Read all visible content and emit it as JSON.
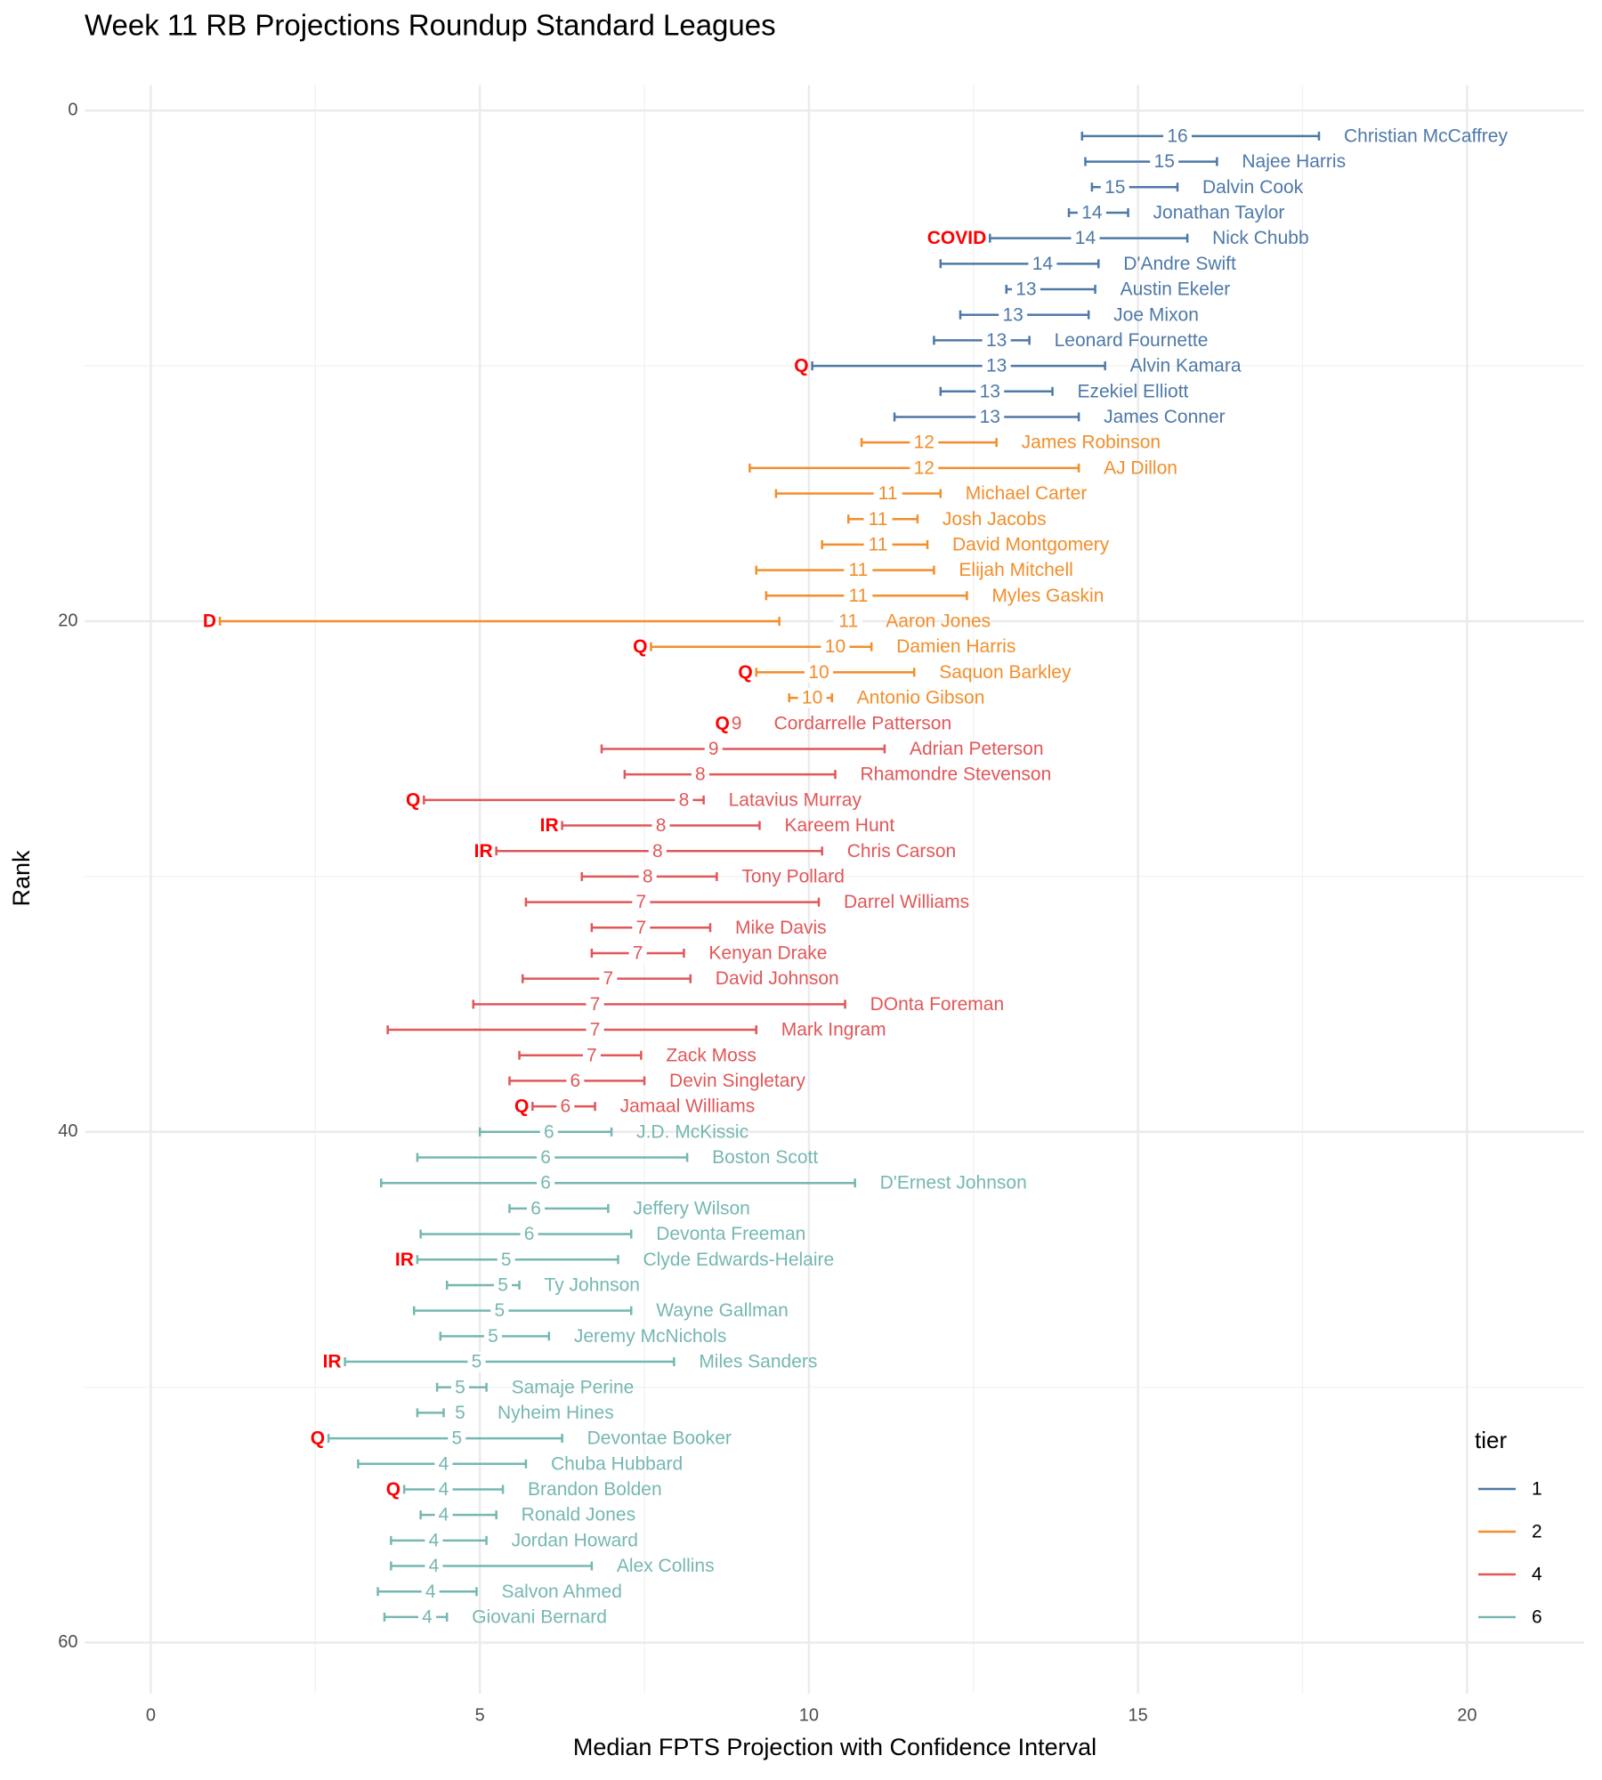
{
  "chart_data": {
    "type": "errorbar",
    "title": "Week 11 RB Projections Roundup Standard Leagues",
    "x_label": "Median FPTS Projection with Confidence Interval",
    "y_label": "Rank",
    "xlim": [
      -1,
      21.78
    ],
    "ylim": [
      -1,
      62
    ],
    "y_reversed": true,
    "xticks": [
      0,
      5,
      10,
      15,
      20
    ],
    "yticks": [
      0,
      20,
      40,
      60
    ],
    "x_minor_grid": [
      2.5,
      7.5,
      12.5,
      17.5
    ],
    "y_minor_grid": [
      10,
      30,
      50
    ],
    "grid": true,
    "legend_title": "tier",
    "legend_position": "bottom-right",
    "status_color": "#ff0000",
    "series": [
      {
        "name": "1",
        "color": "#4e79a7",
        "ranks": [
          1,
          2,
          3,
          4,
          5,
          6,
          7,
          8,
          9,
          10,
          11,
          12
        ],
        "labels": [
          "Christian McCaffrey",
          "Najee Harris",
          "Dalvin Cook",
          "Jonathan Taylor",
          "Nick Chubb",
          "D'Andre Swift",
          "Austin Ekeler",
          "Joe Mixon",
          "Leonard Fournette",
          "Alvin Kamara",
          "Ezekiel Elliott",
          "James Conner"
        ],
        "values": [
          15.6,
          15.4,
          14.65,
          14.3,
          14.2,
          13.55,
          13.3,
          13.1,
          12.85,
          12.85,
          12.75,
          12.75
        ],
        "value_labels": [
          "16",
          "15",
          "15",
          "14",
          "14",
          "14",
          "13",
          "13",
          "13",
          "13",
          "13",
          "13"
        ],
        "lower": [
          14.15,
          14.2,
          14.3,
          13.95,
          12.75,
          12.0,
          13.0,
          12.3,
          11.9,
          10.05,
          12.0,
          11.3
        ],
        "upper": [
          17.75,
          16.2,
          15.6,
          14.85,
          15.75,
          14.4,
          14.35,
          14.25,
          13.35,
          14.5,
          13.7,
          14.1
        ],
        "status": [
          null,
          null,
          null,
          null,
          "COVID",
          null,
          null,
          null,
          null,
          "Q",
          null,
          null
        ]
      },
      {
        "name": "2",
        "color": "#f28e2b",
        "ranks": [
          13,
          14,
          15,
          16,
          17,
          18,
          19,
          20,
          21,
          22,
          23
        ],
        "labels": [
          "James Robinson",
          "AJ Dillon",
          "Michael Carter",
          "Josh Jacobs",
          "David Montgomery",
          "Elijah Mitchell",
          "Myles Gaskin",
          "Aaron Jones",
          "Damien Harris",
          "Saquon Barkley",
          "Antonio Gibson"
        ],
        "values": [
          11.75,
          11.75,
          11.2,
          11.05,
          11.05,
          10.75,
          10.75,
          10.6,
          10.4,
          10.15,
          10.05
        ],
        "value_labels": [
          "12",
          "12",
          "11",
          "11",
          "11",
          "11",
          "11",
          "11",
          "10",
          "10",
          "10"
        ],
        "lower": [
          10.8,
          9.1,
          9.5,
          10.6,
          10.2,
          9.2,
          9.35,
          1.05,
          7.6,
          9.2,
          9.7
        ],
        "upper": [
          12.85,
          14.1,
          12.0,
          11.65,
          11.8,
          11.9,
          12.4,
          9.55,
          10.95,
          11.6,
          10.35
        ],
        "status": [
          null,
          null,
          null,
          null,
          null,
          null,
          null,
          "D",
          "Q",
          "Q",
          null
        ]
      },
      {
        "name": "4",
        "color": "#e15759",
        "ranks": [
          24,
          25,
          26,
          27,
          28,
          29,
          30,
          31,
          32,
          33,
          34,
          35,
          36,
          37,
          38,
          39
        ],
        "labels": [
          "Cordarrelle Patterson",
          "Adrian Peterson",
          "Rhamondre Stevenson",
          "Latavius Murray",
          "Kareem Hunt",
          "Chris Carson",
          "Tony Pollard",
          "Darrel Williams",
          "Mike Davis",
          "Kenyan Drake",
          "David Johnson",
          "DOnta Foreman",
          "Mark Ingram",
          "Zack Moss",
          "Devin Singletary",
          "Jamaal Williams"
        ],
        "values": [
          8.9,
          8.55,
          8.35,
          8.1,
          7.75,
          7.7,
          7.55,
          7.45,
          7.45,
          7.4,
          6.95,
          6.75,
          6.75,
          6.7,
          6.45,
          6.3
        ],
        "value_labels": [
          "9",
          "9",
          "8",
          "8",
          "8",
          "8",
          "8",
          "7",
          "7",
          "7",
          "7",
          "7",
          "7",
          "7",
          "6",
          "6"
        ],
        "lower": [
          8.85,
          6.85,
          7.2,
          4.15,
          6.25,
          5.25,
          6.55,
          5.7,
          6.7,
          6.7,
          5.65,
          4.9,
          3.6,
          5.6,
          5.45,
          5.8
        ],
        "upper": [
          9.0,
          11.15,
          10.4,
          8.4,
          9.25,
          10.2,
          8.6,
          10.15,
          8.5,
          8.1,
          8.2,
          10.55,
          9.2,
          7.45,
          7.5,
          6.75
        ],
        "status": [
          "Q",
          null,
          null,
          "Q",
          "IR",
          "IR",
          null,
          null,
          null,
          null,
          null,
          null,
          null,
          null,
          null,
          "Q"
        ]
      },
      {
        "name": "6",
        "color": "#76b7b2",
        "ranks": [
          40,
          41,
          42,
          43,
          44,
          45,
          46,
          47,
          48,
          49,
          50,
          51,
          52,
          53,
          54,
          55,
          56,
          57,
          58,
          59
        ],
        "labels": [
          "J.D. McKissic",
          "Boston Scott",
          "D'Ernest Johnson",
          "Jeffery Wilson",
          "Devonta Freeman",
          "Clyde Edwards-Helaire",
          "Ty Johnson",
          "Wayne Gallman",
          "Jeremy McNichols",
          "Miles Sanders",
          "Samaje Perine",
          "Nyheim Hines",
          "Devontae Booker",
          "Chuba Hubbard",
          "Brandon Bolden",
          "Ronald Jones",
          "Jordan Howard",
          "Alex Collins",
          "Salvon Ahmed",
          "Giovani Bernard"
        ],
        "values": [
          6.05,
          6.0,
          6.0,
          5.85,
          5.75,
          5.4,
          5.35,
          5.3,
          5.2,
          4.95,
          4.7,
          4.7,
          4.65,
          4.45,
          4.45,
          4.45,
          4.3,
          4.3,
          4.25,
          4.2
        ],
        "value_labels": [
          "6",
          "6",
          "6",
          "6",
          "6",
          "5",
          "5",
          "5",
          "5",
          "5",
          "5",
          "5",
          "5",
          "4",
          "4",
          "4",
          "4",
          "4",
          "4",
          "4"
        ],
        "lower": [
          5.0,
          4.05,
          3.5,
          5.45,
          4.1,
          4.05,
          4.5,
          4.0,
          4.4,
          2.95,
          4.35,
          4.05,
          2.7,
          3.15,
          3.85,
          4.1,
          3.65,
          3.65,
          3.45,
          3.55
        ],
        "upper": [
          7.0,
          8.15,
          10.7,
          6.95,
          7.3,
          7.1,
          5.6,
          7.3,
          6.05,
          7.95,
          5.1,
          4.45,
          6.25,
          5.7,
          5.35,
          5.25,
          5.1,
          6.7,
          4.95,
          4.5
        ],
        "status": [
          null,
          null,
          null,
          null,
          null,
          "IR",
          null,
          null,
          null,
          "IR",
          null,
          null,
          "Q",
          null,
          "Q",
          null,
          null,
          null,
          null,
          null
        ]
      }
    ]
  }
}
